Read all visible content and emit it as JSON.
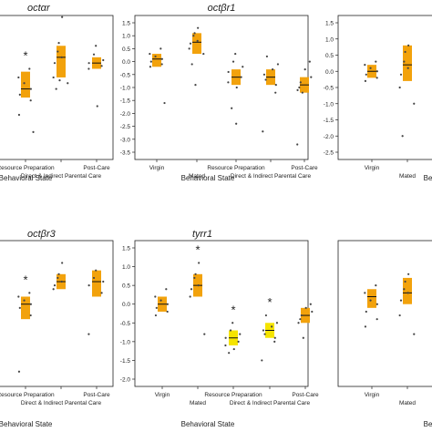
{
  "colors": {
    "orange": "#f2a20c",
    "yellow": "#f5e400",
    "point": "#444444",
    "median": "#111111",
    "axis": "#222222"
  },
  "chart_data": [
    {
      "type": "scatter",
      "title": "octαr",
      "xlabel": "Behavioral State",
      "ylabel": "",
      "ylim": [
        -3.5,
        1.0
      ],
      "categories": [
        "Resource Preparation",
        "Direct & Indirect Parental Care",
        "Post-Care"
      ],
      "category_rows": [
        0,
        1,
        0
      ],
      "significance": [
        "*",
        "",
        ""
      ],
      "groups": [
        {
          "box": [
            -1.6,
            -0.7
          ],
          "median": -1.3,
          "color": "orange",
          "points": [
            -0.6,
            -0.9,
            -1.1,
            -1.3,
            -1.5,
            -1.7,
            -2.2,
            -2.8
          ]
        },
        {
          "box": [
            -0.9,
            0.2
          ],
          "median": -0.2,
          "color": "orange",
          "points": [
            1.2,
            0.3,
            0.0,
            -0.2,
            -0.4,
            -0.9,
            -1.1,
            -1.3,
            -1.0
          ]
        },
        {
          "box": [
            -0.6,
            -0.2
          ],
          "median": -0.4,
          "color": "orange",
          "points": [
            0.2,
            -0.1,
            -0.3,
            -0.4,
            -0.5,
            -0.6,
            -1.9
          ]
        }
      ]
    },
    {
      "type": "scatter",
      "title": "octβr1",
      "xlabel": "Behavioral State",
      "ylabel": "",
      "ylim": [
        -3.5,
        1.5
      ],
      "yticks": [
        1.5,
        1.0,
        0.5,
        0.0,
        -0.5,
        -1.0,
        -1.5,
        -2.0,
        -2.5,
        -3.0,
        -3.5
      ],
      "categories": [
        "Virgin",
        "Mated",
        "Resource Preparation",
        "Direct & Indirect Parental Care",
        "Post-Care"
      ],
      "category_rows": [
        0,
        1,
        0,
        1,
        0
      ],
      "significance": [
        "",
        "",
        "",
        "",
        ""
      ],
      "groups": [
        {
          "box": [
            -0.2,
            0.3
          ],
          "median": 0.1,
          "color": "orange",
          "points": [
            0.5,
            0.3,
            0.2,
            0.1,
            0.0,
            -0.1,
            -0.2,
            -1.6
          ]
        },
        {
          "box": [
            0.3,
            1.1
          ],
          "median": 0.75,
          "color": "orange",
          "points": [
            1.3,
            1.1,
            1.0,
            0.8,
            0.7,
            0.5,
            0.3,
            -0.1,
            -0.9
          ]
        },
        {
          "box": [
            -0.9,
            -0.3
          ],
          "median": -0.6,
          "color": "orange",
          "points": [
            0.3,
            0.0,
            -0.2,
            -0.4,
            -0.6,
            -0.8,
            -1.0,
            -1.8,
            -2.4
          ]
        },
        {
          "box": [
            -0.9,
            -0.3
          ],
          "median": -0.6,
          "color": "orange",
          "points": [
            0.2,
            -0.1,
            -0.3,
            -0.5,
            -0.7,
            -0.9,
            -1.2,
            -2.7
          ]
        },
        {
          "box": [
            -1.2,
            -0.6
          ],
          "median": -0.9,
          "color": "orange",
          "points": [
            0.0,
            -0.3,
            -0.6,
            -0.8,
            -1.0,
            -1.1,
            -1.2,
            -3.2
          ]
        }
      ]
    },
    {
      "type": "scatter",
      "title": "",
      "xlabel": "Beha",
      "ylabel": "",
      "ylim": [
        -2.5,
        1.5
      ],
      "yticks": [
        1.5,
        1.0,
        0.5,
        0.0,
        -0.5,
        -1.0,
        -1.5,
        -2.0,
        -2.5
      ],
      "categories": [
        "Virgin",
        "Mated"
      ],
      "category_rows": [
        0,
        1
      ],
      "significance": [
        "",
        ""
      ],
      "groups": [
        {
          "box": [
            -0.2,
            0.2
          ],
          "median": 0.0,
          "color": "orange",
          "points": [
            0.3,
            0.2,
            0.1,
            0.0,
            -0.1,
            -0.2,
            -0.3
          ]
        },
        {
          "box": [
            -0.3,
            0.8
          ],
          "median": 0.2,
          "color": "orange",
          "points": [
            0.8,
            0.6,
            0.3,
            0.1,
            -0.1,
            -0.5,
            -1.0,
            -2.0
          ]
        }
      ]
    },
    {
      "type": "scatter",
      "title": "octβr3",
      "xlabel": "Behavioral State",
      "ylabel": "",
      "ylim": [
        -2.5,
        1.0
      ],
      "categories": [
        "Resource Preparation",
        "Direct & Indirect Parental Care",
        "Post-Care"
      ],
      "category_rows": [
        0,
        1,
        0
      ],
      "significance": [
        "*",
        "",
        ""
      ],
      "groups": [
        {
          "box": [
            -0.9,
            -0.3
          ],
          "median": -0.5,
          "color": "orange",
          "points": [
            -0.2,
            -0.3,
            -0.4,
            -0.5,
            -0.6,
            -0.8,
            -2.3
          ]
        },
        {
          "box": [
            -0.1,
            0.3
          ],
          "median": 0.1,
          "color": "orange",
          "points": [
            0.6,
            0.3,
            0.2,
            0.1,
            0.0,
            -0.1
          ]
        },
        {
          "box": [
            -0.3,
            0.4
          ],
          "median": 0.1,
          "color": "orange",
          "points": [
            0.4,
            0.2,
            0.1,
            0.0,
            -0.2,
            -1.3
          ]
        }
      ]
    },
    {
      "type": "scatter",
      "title": "tyrr1",
      "xlabel": "Behavioral State",
      "ylabel": "",
      "ylim": [
        -2.0,
        1.5
      ],
      "yticks": [
        1.5,
        1.0,
        0.5,
        0.0,
        -0.5,
        -1.0,
        -1.5,
        -2.0
      ],
      "categories": [
        "Virgin",
        "Mated",
        "Resource Preparation",
        "Direct & Indirect Parental Care",
        "Post-Care"
      ],
      "category_rows": [
        0,
        1,
        0,
        1,
        0
      ],
      "significance": [
        "",
        "*",
        "*",
        "*",
        ""
      ],
      "groups": [
        {
          "box": [
            -0.2,
            0.2
          ],
          "median": 0.0,
          "color": "orange",
          "points": [
            0.4,
            0.2,
            0.1,
            0.0,
            -0.1,
            -0.2,
            -0.3
          ]
        },
        {
          "box": [
            0.2,
            0.8
          ],
          "median": 0.5,
          "color": "orange",
          "points": [
            1.1,
            0.8,
            0.7,
            0.5,
            0.4,
            0.2,
            -0.8
          ]
        },
        {
          "box": [
            -1.1,
            -0.7
          ],
          "median": -0.9,
          "color": "yellow",
          "points": [
            -0.5,
            -0.7,
            -0.8,
            -0.9,
            -1.0,
            -1.1,
            -1.2,
            -1.3
          ]
        },
        {
          "box": [
            -0.9,
            -0.5
          ],
          "median": -0.7,
          "color": "yellow",
          "points": [
            -0.3,
            -0.5,
            -0.6,
            -0.7,
            -0.8,
            -0.9,
            -1.0,
            -1.5
          ]
        },
        {
          "box": [
            -0.5,
            -0.1
          ],
          "median": -0.3,
          "color": "orange",
          "points": [
            0.0,
            -0.1,
            -0.2,
            -0.3,
            -0.4,
            -0.5,
            -0.9
          ]
        }
      ]
    },
    {
      "type": "scatter",
      "title": "",
      "xlabel": "Beha",
      "ylabel": "",
      "ylim": [
        -2.0,
        1.5
      ],
      "categories": [
        "Virgin",
        "Mated"
      ],
      "category_rows": [
        0,
        1
      ],
      "significance": [
        "",
        ""
      ],
      "groups": [
        {
          "box": [
            -0.1,
            0.4
          ],
          "median": 0.2,
          "color": "orange",
          "points": [
            0.5,
            0.3,
            0.1,
            0.0,
            -0.2,
            -0.4,
            -0.6
          ]
        },
        {
          "box": [
            0.0,
            0.7
          ],
          "median": 0.3,
          "color": "orange",
          "points": [
            0.8,
            0.6,
            0.4,
            0.3,
            0.1,
            -0.3,
            -0.8
          ]
        }
      ]
    }
  ]
}
